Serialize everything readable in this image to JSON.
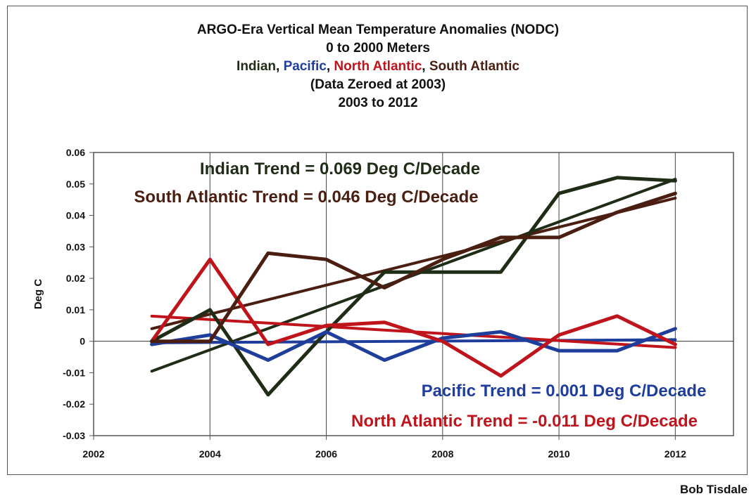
{
  "chart_data": {
    "type": "line",
    "title": "ARGO-Era Vertical Mean Temperature Anomalies (NODC)",
    "subtitle_lines": [
      "0 to 2000 Meters",
      "(Data Zeroed at 2003)",
      "2003 to 2012"
    ],
    "legend_title_parts": [
      {
        "text": "Indian",
        "color": "#1f2d16"
      },
      {
        "text": ", ",
        "color": "#111111"
      },
      {
        "text": "Pacific",
        "color": "#1f3e9c"
      },
      {
        "text": ", ",
        "color": "#111111"
      },
      {
        "text": "North Atlantic",
        "color": "#c0141c"
      },
      {
        "text": ", ",
        "color": "#111111"
      },
      {
        "text": "South Atlantic",
        "color": "#4a1e10"
      }
    ],
    "ylabel": "Deg C",
    "xlabel": "",
    "xlim": [
      2002,
      2013
    ],
    "ylim": [
      -0.03,
      0.06
    ],
    "xticks": [
      2002,
      2004,
      2006,
      2008,
      2010,
      2012
    ],
    "xtick_labels": [
      "2002",
      "2004",
      "2006",
      "2008",
      "2010",
      "2012"
    ],
    "yticks": [
      -0.03,
      -0.02,
      -0.01,
      0,
      0.01,
      0.02,
      0.03,
      0.04,
      0.05,
      0.06
    ],
    "ytick_labels": [
      "-0.03",
      "-0.02",
      "-0.01",
      "0",
      "0.01",
      "0.02",
      "0.03",
      "0.04",
      "0.05",
      "0.06"
    ],
    "grid": "vertical",
    "x": [
      2003,
      2004,
      2005,
      2006,
      2007,
      2008,
      2009,
      2010,
      2011,
      2012
    ],
    "series": [
      {
        "name": "Indian",
        "color": "#1f2d16",
        "values": [
          0.0,
          0.01,
          -0.017,
          0.003,
          0.022,
          0.022,
          0.022,
          0.047,
          0.052,
          0.051
        ],
        "trend": [
          -0.0095,
          0.0515
        ]
      },
      {
        "name": "Pacific",
        "color": "#1f3e9c",
        "values": [
          -0.001,
          0.002,
          -0.006,
          0.003,
          -0.006,
          0.001,
          0.003,
          -0.003,
          -0.003,
          0.004
        ],
        "trend": [
          -0.0005,
          0.0005
        ]
      },
      {
        "name": "North Atlantic",
        "color": "#c0141c",
        "values": [
          0.0,
          0.026,
          -0.001,
          0.005,
          0.006,
          0.0,
          -0.011,
          0.002,
          0.008,
          -0.001
        ],
        "trend": [
          0.008,
          -0.002
        ]
      },
      {
        "name": "South Atlantic",
        "color": "#4a1e10",
        "values": [
          0.0,
          0.0,
          0.028,
          0.026,
          0.017,
          0.026,
          0.033,
          0.033,
          0.041,
          0.047
        ],
        "trend": [
          0.004,
          0.0455
        ]
      }
    ],
    "annotations": [
      {
        "text": "Indian Trend = 0.069 Deg C/Decade",
        "color": "#1f2d16"
      },
      {
        "text": "South Atlantic Trend = 0.046 Deg C/Decade",
        "color": "#4a1e10"
      },
      {
        "text": "Pacific Trend = 0.001 Deg C/Decade",
        "color": "#1f3e9c"
      },
      {
        "text": "North Atlantic Trend = -0.011 Deg C/Decade",
        "color": "#c0141c"
      }
    ]
  },
  "credit": "Bob Tisdale"
}
